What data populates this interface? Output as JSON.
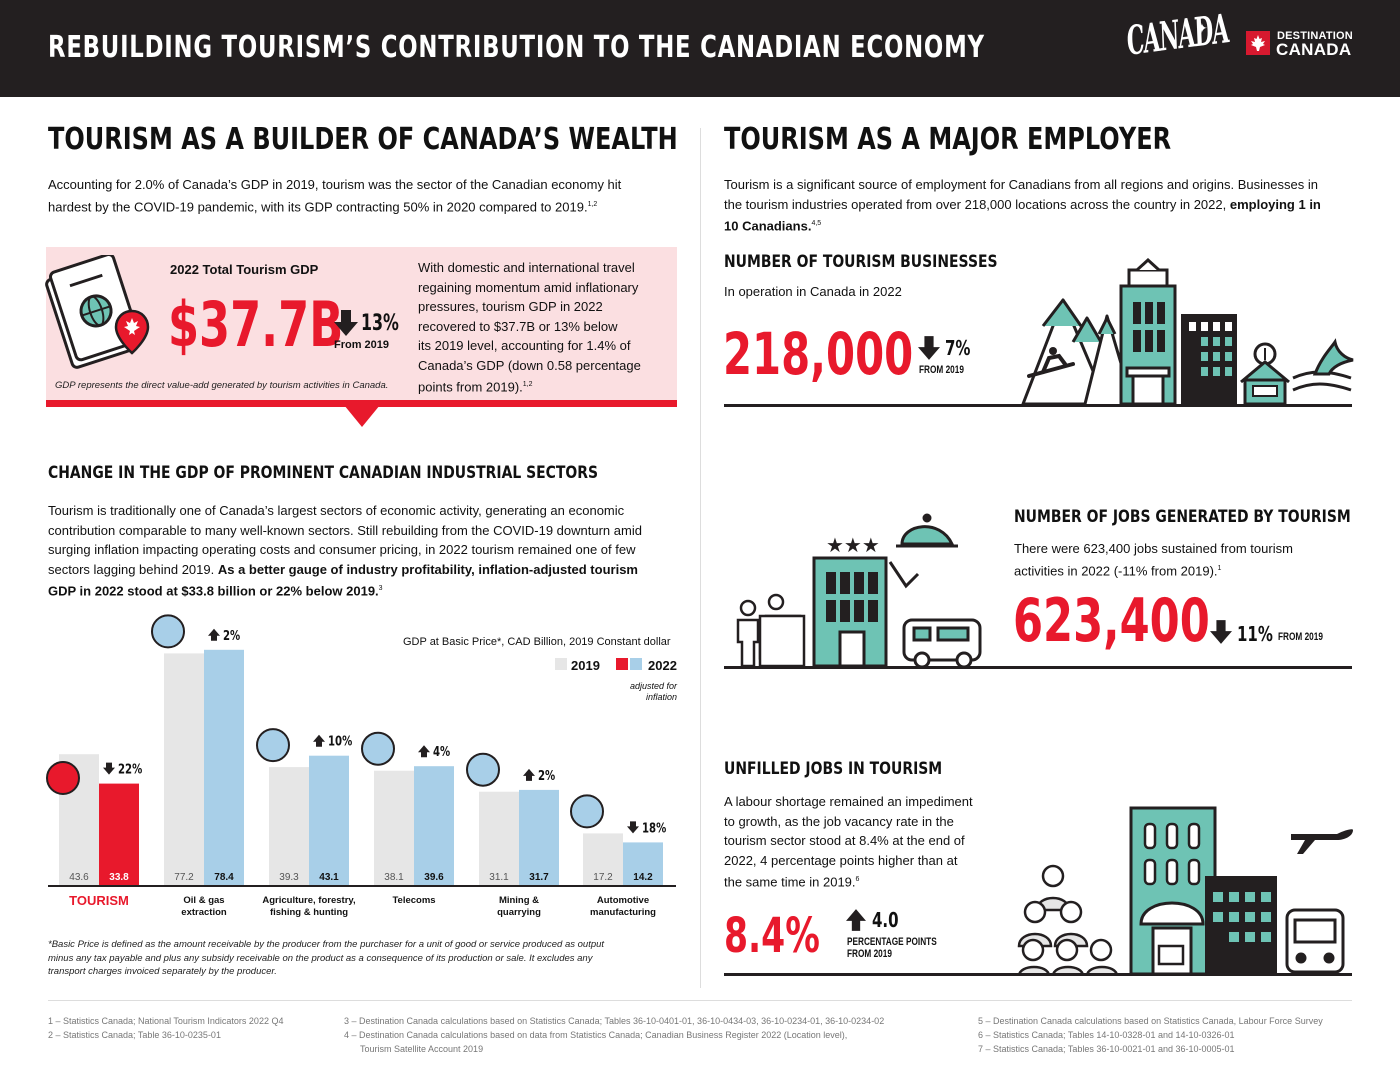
{
  "header": {
    "title": "REBUILDING TOURISM’S CONTRIBUTION TO THE CANADIAN ECONOMY",
    "logo_canada": "CANADA",
    "logo_dc_line1": "DESTINATION",
    "logo_dc_line2": "CANADA"
  },
  "left": {
    "title": "TOURISM AS A BUILDER OF CANADA’S WEALTH",
    "intro_line1": "Accounting for 2.0% of Canada’s GDP in 2019, tourism was the sector of the Canadian economy hit",
    "intro_line2": "hardest by the COVID-19 pandemic, with its GDP contracting 50% in 2020 compared to 2019.",
    "intro_sup": "1,2",
    "gdp_box": {
      "label": "2022 Total Tourism GDP",
      "value": "$37.7B",
      "change": "13%",
      "from": "From 2019",
      "note": "GDP represents the direct value-add generated by tourism activities in Canada.",
      "text_lines": [
        "With domestic and international travel",
        "regaining momentum amid inflationary",
        "pressures, tourism GDP in 2022",
        "recovered to $37.7B or 13% below",
        "its 2019 level, accounting for 1.4% of",
        "Canada’s GDP (down 0.58 percentage",
        "points from 2019)."
      ],
      "text_sup": "1,2"
    },
    "sectors_title": "CHANGE IN THE GDP OF PROMINENT CANADIAN INDUSTRIAL SECTORS",
    "sectors_lines": [
      "Tourism is traditionally one of Canada’s largest sectors of economic activity, generating an economic",
      "contribution comparable to many well-known sectors. Still rebuilding from the COVID-19 downturn amid",
      "surging inflation impacting operating costs and consumer pricing, in 2022 tourism remained one of few",
      "sectors lagging behind 2019."
    ],
    "sectors_bold_1": "As a better gauge of industry profitability, inflation-adjusted tourism",
    "sectors_bold_2": "GDP in 2022 stood at $33.8 billion or 22% below 2019.",
    "sectors_sup": "3"
  },
  "chart_data": {
    "type": "bar",
    "title": "GDP at Basic Price*, CAD Billion, 2019 Constant dollar",
    "legend": [
      "2019",
      "2022"
    ],
    "legend_note": "adjusted for inflation",
    "categories": [
      "TOURISM",
      "Oil & gas extraction",
      "Agriculture, forestry, fishing & hunting",
      "Telecoms",
      "Mining & quarrying",
      "Automotive manufacturing"
    ],
    "series": [
      {
        "name": "2019",
        "values": [
          43.6,
          77.2,
          39.3,
          38.1,
          31.1,
          17.2
        ]
      },
      {
        "name": "2022",
        "values": [
          33.8,
          78.4,
          43.1,
          39.6,
          31.7,
          14.2
        ]
      }
    ],
    "changes": [
      "22%",
      "2%",
      "10%",
      "4%",
      "2%",
      "18%"
    ],
    "directions": [
      "down",
      "up",
      "up",
      "up",
      "up",
      "down"
    ],
    "icons": [
      "luggage-icon",
      "oil-pump-icon",
      "tree-icon",
      "antenna-icon",
      "diamond-icon",
      "car-icon"
    ],
    "colors": {
      "y2019": "#e6e6e6",
      "tourism2022": "#e8192c",
      "other2022": "#a8cfe8"
    },
    "footnote_lines": [
      "*Basic Price is defined as the amount receivable by the producer from the purchaser for a unit of good or service produced as output",
      "minus any tax payable and plus any subsidy receivable on the product as a consequence of its production or sale. It excludes any",
      "transport charges invoiced separately by the producer."
    ]
  },
  "right": {
    "title": "TOURISM AS A MAJOR EMPLOYER",
    "intro_line1": "Tourism is a significant source of employment for Canadians from all regions and origins. Businesses in",
    "intro_line2": "the tourism industries operated from over 218,000 locations across the country in 2022,",
    "intro_bold_a": "employing 1 in",
    "intro_bold_b": "10 Canadians.",
    "intro_sup": "4,5",
    "businesses": {
      "title": "NUMBER OF TOURISM BUSINESSES",
      "sub": "In operation in Canada in 2022",
      "value": "218,000",
      "change": "7%",
      "from": "FROM 2019"
    },
    "jobs": {
      "title": "NUMBER OF JOBS GENERATED BY TOURISM",
      "line1": "There were 623,400 jobs sustained from tourism",
      "line2": "activities in 2022 (-11% from 2019).",
      "sup": "1",
      "value": "623,400",
      "change": "11%",
      "from": "FROM 2019"
    },
    "unfilled": {
      "title": "UNFILLED JOBS IN TOURISM",
      "lines": [
        "A labour shortage remained an impediment",
        "to growth, as the job vacancy rate in the",
        "tourism sector stood at 8.4% at the end of",
        "2022, 4 percentage points higher than at",
        "the same time in 2019."
      ],
      "sup": "6",
      "value": "8.4%",
      "change": "4.0",
      "change_label_1": "PERCENTAGE POINTS",
      "change_label_2": "FROM 2019"
    }
  },
  "footnotes": {
    "col1": [
      "1 – Statistics Canada; National Tourism Indicators 2022 Q4",
      "2 – Statistics Canada; Table 36-10-0235-01"
    ],
    "col2": [
      "3 – Destination Canada calculations based on Statistics Canada; Tables 36-10-0401-01, 36-10-0434-03, 36-10-0234-01, 36-10-0234-02",
      "4 – Destination Canada calculations based on data from Statistics Canada; Canadian Business Register 2022 (Location level),",
      "Tourism Satellite Account 2019"
    ],
    "col3": [
      "5 – Destination Canada calculations based on Statistics Canada, Labour Force Survey",
      "6 – Statistics Canada; Tables 14-10-0328-01 and 14-10-0326-01",
      "7 – Statistics Canada; Tables 36-10-0021-01 and 36-10-0005-01"
    ]
  }
}
